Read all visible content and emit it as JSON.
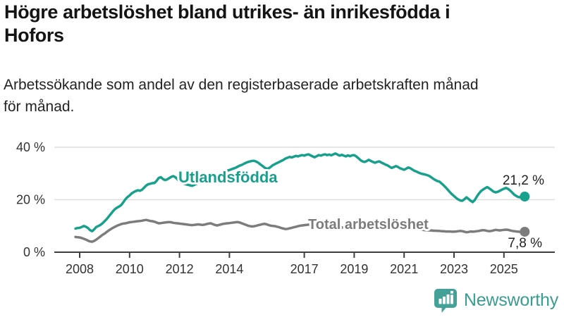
{
  "header": {
    "title_lines": [
      "Högre arbetslöshet bland utrikes- än inrikesfödda i",
      "Hofors"
    ],
    "subtitle_lines": [
      "Arbetssökande som andel av den registerbaserade arbetskraften månad",
      "för månad."
    ]
  },
  "chart_data": {
    "type": "line",
    "unit": "%",
    "frequency": "monthly",
    "x_start": "2007-11",
    "x_axis": {
      "tick_years": [
        2008,
        2010,
        2012,
        2014,
        2017,
        2019,
        2021,
        2023,
        2025
      ]
    },
    "y_axis": {
      "ylim": [
        0,
        42
      ],
      "gridlines": [
        20,
        40
      ],
      "ticks": [
        {
          "value": 0,
          "label": "0 %"
        },
        {
          "value": 20,
          "label": "20 %"
        },
        {
          "value": 40,
          "label": "40 %"
        }
      ]
    },
    "colors": {
      "accent_teal": "#17a08c",
      "neutral_gray": "#7c7c7c",
      "axis": "#3f3f3f",
      "grid": "#dedede",
      "annotation": "#222222"
    },
    "series": [
      {
        "name": "Utlandsfödda",
        "color": "#17a08c",
        "end_value": 21.2,
        "end_label": "21,2 %",
        "values": [
          9.0,
          9.2,
          9.3,
          9.6,
          10.0,
          9.7,
          9.2,
          8.4,
          8.0,
          8.7,
          9.6,
          10.0,
          10.4,
          11.0,
          11.8,
          12.6,
          13.6,
          14.6,
          15.6,
          16.4,
          17.0,
          17.4,
          18.0,
          19.0,
          20.2,
          21.0,
          21.6,
          22.4,
          22.9,
          23.3,
          23.6,
          23.4,
          23.8,
          24.6,
          25.4,
          25.9,
          26.1,
          26.3,
          26.4,
          27.2,
          28.3,
          28.6,
          27.9,
          27.5,
          27.7,
          28.2,
          28.7,
          29.0,
          28.6,
          27.8,
          27.0,
          26.6,
          26.2,
          25.9,
          25.7,
          25.5,
          25.3,
          25.6,
          26.0,
          26.3,
          26.6,
          26.9,
          27.2,
          27.5,
          27.9,
          28.3,
          28.7,
          29.0,
          29.2,
          29.6,
          30.0,
          30.4,
          30.8,
          31.1,
          31.3,
          31.6,
          31.9,
          32.2,
          32.6,
          33.0,
          33.3,
          33.7,
          34.1,
          34.4,
          34.6,
          34.8,
          34.8,
          34.5,
          34.0,
          33.4,
          32.8,
          32.2,
          31.8,
          32.0,
          32.6,
          33.2,
          33.6,
          34.0,
          34.4,
          34.8,
          35.2,
          35.7,
          36.0,
          36.3,
          36.1,
          36.4,
          36.7,
          36.5,
          36.8,
          37.0,
          36.8,
          37.1,
          37.3,
          36.9,
          36.5,
          36.2,
          36.6,
          37.0,
          36.8,
          37.1,
          37.3,
          37.0,
          37.2,
          36.9,
          37.3,
          37.6,
          37.2,
          36.8,
          37.1,
          36.8,
          36.5,
          36.9,
          36.6,
          36.9,
          37.0,
          36.5,
          35.8,
          35.1,
          34.6,
          34.4,
          34.7,
          35.2,
          34.8,
          34.4,
          34.1,
          34.4,
          34.6,
          34.2,
          33.8,
          33.4,
          33.1,
          32.6,
          32.1,
          32.4,
          32.8,
          32.5,
          32.0,
          31.7,
          31.4,
          31.8,
          32.3,
          32.0,
          31.5,
          31.0,
          30.7,
          30.3,
          30.0,
          29.8,
          29.6,
          29.4,
          29.1,
          28.6,
          28.0,
          27.5,
          27.1,
          26.9,
          26.2,
          25.5,
          24.7,
          23.8,
          22.9,
          22.1,
          21.4,
          20.7,
          20.1,
          19.7,
          19.6,
          20.2,
          20.9,
          20.3,
          19.6,
          19.1,
          19.9,
          21.2,
          22.4,
          23.3,
          23.9,
          24.4,
          24.8,
          24.3,
          23.7,
          23.1,
          22.8,
          23.0,
          23.4,
          23.8,
          24.2,
          24.5,
          24.1,
          23.5,
          22.7,
          21.9,
          21.4,
          21.0,
          20.9,
          21.0,
          21.2
        ]
      },
      {
        "name": "Total arbetslöshet",
        "color": "#7c7c7c",
        "end_value": 7.8,
        "end_label": "7,8 %",
        "values": [
          5.8,
          5.7,
          5.6,
          5.4,
          5.1,
          4.8,
          4.4,
          4.1,
          4.0,
          4.3,
          4.8,
          5.4,
          6.0,
          6.6,
          7.1,
          7.7,
          8.3,
          8.8,
          9.3,
          9.7,
          10.1,
          10.4,
          10.7,
          10.9,
          11.0,
          11.2,
          11.4,
          11.5,
          11.6,
          11.7,
          11.8,
          11.9,
          12.0,
          12.2,
          12.3,
          12.1,
          11.9,
          11.8,
          11.6,
          11.3,
          11.0,
          11.1,
          11.2,
          11.3,
          11.4,
          11.5,
          11.4,
          11.2,
          11.1,
          11.0,
          10.9,
          10.8,
          10.7,
          10.6,
          10.5,
          10.4,
          10.3,
          10.4,
          10.5,
          10.6,
          10.5,
          10.4,
          10.5,
          10.7,
          10.9,
          11.0,
          10.7,
          10.4,
          10.2,
          10.4,
          10.6,
          10.8,
          10.9,
          11.0,
          11.1,
          11.2,
          11.3,
          11.4,
          11.5,
          11.3,
          11.0,
          10.7,
          10.4,
          10.1,
          9.9,
          9.8,
          9.9,
          10.1,
          10.3,
          10.5,
          10.7,
          10.8,
          10.6,
          10.3,
          10.1,
          10.0,
          9.9,
          9.7,
          9.5,
          9.2,
          9.0,
          8.8,
          8.9,
          9.1,
          9.3,
          9.5,
          9.7,
          9.9,
          10.1,
          10.2,
          10.3,
          10.4,
          10.5,
          10.4,
          10.3,
          10.2,
          10.1,
          10.0,
          9.9,
          9.8,
          9.8,
          9.9,
          9.9,
          9.8,
          9.7,
          9.6,
          9.5,
          9.4,
          9.4,
          9.5,
          9.5,
          9.4,
          9.3,
          9.3,
          9.4,
          9.4,
          9.3,
          9.2,
          9.1,
          9.1,
          9.2,
          9.3,
          9.2,
          9.1,
          9.1,
          9.2,
          9.4,
          9.6,
          9.9,
          10.3,
          10.5,
          10.6,
          10.5,
          10.4,
          10.2,
          10.0,
          9.8,
          9.7,
          9.6,
          9.5,
          9.4,
          9.2,
          9.1,
          8.9,
          8.8,
          8.7,
          8.6,
          8.5,
          8.4,
          8.4,
          8.3,
          8.3,
          8.2,
          8.2,
          8.1,
          8.1,
          8.0,
          8.0,
          7.9,
          7.9,
          7.9,
          7.8,
          7.8,
          7.9,
          8.0,
          8.1,
          8.0,
          7.8,
          7.6,
          7.7,
          7.9,
          7.8,
          7.9,
          8.0,
          8.1,
          8.3,
          8.4,
          8.3,
          8.1,
          8.0,
          8.1,
          8.3,
          8.5,
          8.4,
          8.3,
          8.4,
          8.5,
          8.6,
          8.5,
          8.3,
          8.1,
          8.0,
          7.9,
          7.8,
          7.7,
          7.7,
          7.8
        ]
      }
    ]
  },
  "footer": {
    "brand": "Newsworthy",
    "logo_color": "#3b9c90",
    "logo_icon": "bar-chart-speech-bubble-icon"
  }
}
